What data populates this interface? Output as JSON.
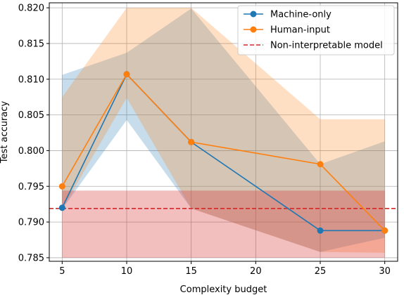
{
  "chart_data": {
    "type": "line",
    "title": "",
    "xlabel": "Complexity budget",
    "ylabel": "Test accuracy",
    "x": [
      5,
      10,
      15,
      25,
      30
    ],
    "xlim": [
      4,
      31
    ],
    "ylim": [
      0.7845,
      0.8207
    ],
    "xticks": [
      5,
      10,
      15,
      20,
      25,
      30
    ],
    "yticks": [
      0.785,
      0.79,
      0.795,
      0.8,
      0.805,
      0.81,
      0.815,
      0.82
    ],
    "grid": true,
    "legend_position": "top-right",
    "series": [
      {
        "name": "Machine-only",
        "color": "#1f77b4",
        "marker": "circle",
        "values": [
          0.792,
          0.8107,
          0.8012,
          0.7888,
          0.7888
        ],
        "band_lower": [
          0.7918,
          0.8043,
          0.7919,
          0.7858,
          0.7878
        ],
        "band_upper": [
          0.8106,
          0.8137,
          0.8199,
          0.7981,
          0.8013
        ]
      },
      {
        "name": "Human-input",
        "color": "#ff7f0e",
        "marker": "circle",
        "values": [
          0.795,
          0.8107,
          0.8012,
          0.7981,
          0.7888
        ],
        "band_lower": [
          0.7918,
          0.8074,
          0.7919,
          0.7858,
          0.7857
        ],
        "band_upper": [
          0.8075,
          0.82,
          0.82,
          0.8044,
          0.8044
        ]
      }
    ],
    "reference": {
      "name": "Non-interpretable model",
      "color": "#d62728",
      "style": "dashed",
      "value": 0.7919,
      "band_lower": 0.785,
      "band_upper": 0.7944
    }
  }
}
